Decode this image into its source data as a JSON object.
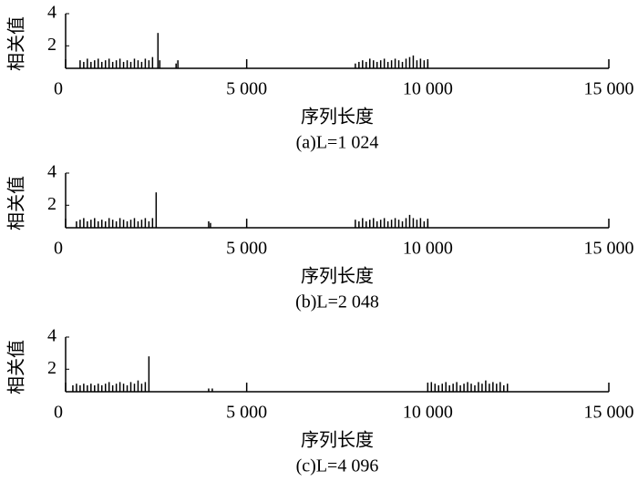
{
  "chart_data": [
    {
      "type": "stem",
      "ylabel": "相关值",
      "xlabel": "序列长度",
      "caption": "(a)L=1 024",
      "color": "#000000",
      "xlim": [
        0,
        15000
      ],
      "ylim": [
        0.6,
        4
      ],
      "xticks": [
        0,
        {
          "value": 5000,
          "label": "5 000"
        },
        {
          "value": 10000,
          "label": "10 000"
        },
        {
          "value": 15000,
          "label": "15 000"
        }
      ],
      "yticks": [
        2,
        4
      ],
      "x": [
        400,
        500,
        600,
        700,
        800,
        900,
        1000,
        1100,
        1200,
        1300,
        1400,
        1500,
        1600,
        1700,
        1800,
        1900,
        2000,
        2100,
        2200,
        2300,
        2400,
        2550,
        2600,
        3050,
        3100,
        8000,
        8100,
        8200,
        8300,
        8400,
        8500,
        8600,
        8700,
        8800,
        8900,
        9000,
        9100,
        9200,
        9300,
        9400,
        9500,
        9600,
        9700,
        9800,
        9900,
        10000
      ],
      "values": [
        1.1,
        1.0,
        1.2,
        1.0,
        1.1,
        1.2,
        1.0,
        1.1,
        1.2,
        1.0,
        1.1,
        1.2,
        1.0,
        1.1,
        1.0,
        1.2,
        1.1,
        1.0,
        1.2,
        1.1,
        1.3,
        2.8,
        1.1,
        0.9,
        1.1,
        0.9,
        1.0,
        1.1,
        1.0,
        1.2,
        1.1,
        1.0,
        1.1,
        1.2,
        1.0,
        1.1,
        1.2,
        1.1,
        1.0,
        1.2,
        1.3,
        1.4,
        1.1,
        1.2,
        1.1,
        1.0
      ]
    },
    {
      "type": "stem",
      "ylabel": "相关值",
      "xlabel": "序列长度",
      "caption": "(b)L=2 048",
      "color": "#000000",
      "xlim": [
        0,
        15000
      ],
      "ylim": [
        0.6,
        4
      ],
      "xticks": [
        0,
        {
          "value": 5000,
          "label": "5 000"
        },
        {
          "value": 10000,
          "label": "10 000"
        },
        {
          "value": 15000,
          "label": "15 000"
        }
      ],
      "yticks": [
        2,
        4
      ],
      "x": [
        300,
        400,
        500,
        600,
        700,
        800,
        900,
        1000,
        1100,
        1200,
        1300,
        1400,
        1500,
        1600,
        1700,
        1800,
        1900,
        2000,
        2100,
        2200,
        2300,
        2400,
        2500,
        3950,
        4000,
        8000,
        8100,
        8200,
        8300,
        8400,
        8500,
        8600,
        8700,
        8800,
        8900,
        9000,
        9100,
        9200,
        9300,
        9400,
        9500,
        9600,
        9700,
        9800,
        9900,
        10000
      ],
      "values": [
        1.0,
        1.1,
        1.2,
        1.0,
        1.1,
        1.2,
        1.0,
        1.1,
        1.0,
        1.2,
        1.1,
        1.0,
        1.2,
        1.1,
        1.0,
        1.1,
        1.2,
        1.0,
        1.1,
        1.2,
        1.0,
        1.2,
        2.8,
        1.0,
        0.9,
        1.1,
        1.0,
        1.2,
        1.0,
        1.1,
        1.2,
        1.0,
        1.1,
        1.2,
        1.0,
        1.1,
        1.2,
        1.1,
        1.0,
        1.2,
        1.4,
        1.2,
        1.1,
        1.2,
        1.0,
        1.0
      ]
    },
    {
      "type": "stem",
      "ylabel": "相关值",
      "xlabel": "序列长度",
      "caption": "(c)L=4 096",
      "color": "#000000",
      "xlim": [
        0,
        15000
      ],
      "ylim": [
        0.6,
        4
      ],
      "xticks": [
        0,
        {
          "value": 5000,
          "label": "5 000"
        },
        {
          "value": 10000,
          "label": "10 000"
        },
        {
          "value": 15000,
          "label": "15 000"
        }
      ],
      "yticks": [
        2,
        4
      ],
      "x": [
        200,
        300,
        400,
        500,
        600,
        700,
        800,
        900,
        1000,
        1100,
        1200,
        1300,
        1400,
        1500,
        1600,
        1700,
        1800,
        1900,
        2000,
        2100,
        2200,
        2300,
        3950,
        4050,
        10100,
        10200,
        10300,
        10400,
        10500,
        10600,
        10700,
        10800,
        10900,
        11000,
        11100,
        11200,
        11300,
        11400,
        11500,
        11600,
        11700,
        11800,
        11900,
        12000,
        12100,
        12200
      ],
      "values": [
        1.0,
        1.1,
        1.0,
        1.1,
        1.0,
        1.1,
        1.0,
        1.1,
        1.0,
        1.1,
        1.2,
        1.0,
        1.1,
        1.2,
        1.1,
        1.0,
        1.2,
        1.1,
        1.3,
        1.1,
        1.2,
        2.8,
        0.8,
        0.8,
        1.2,
        1.1,
        1.0,
        1.1,
        1.2,
        1.0,
        1.1,
        1.2,
        1.0,
        1.1,
        1.2,
        1.1,
        1.0,
        1.2,
        1.1,
        1.3,
        1.1,
        1.2,
        1.1,
        1.2,
        1.0,
        1.1
      ]
    }
  ]
}
